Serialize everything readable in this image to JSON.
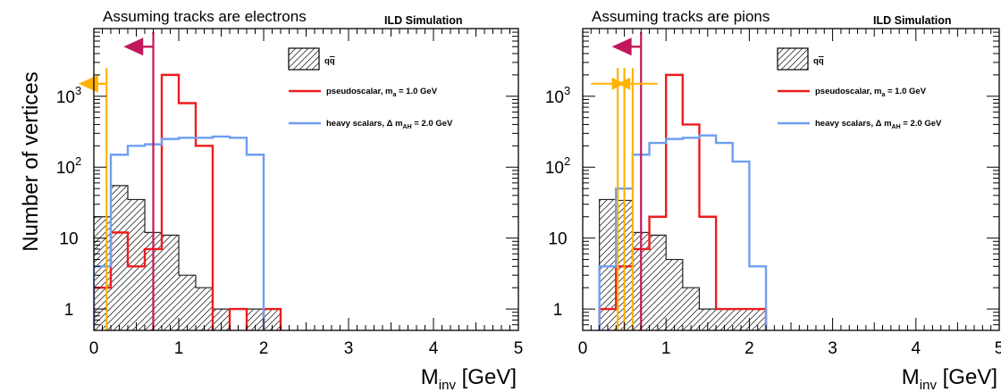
{
  "colors": {
    "qq": "#222222",
    "pseudoscalar": "#ee1c1c",
    "heavy": "#6f9ef0",
    "cut_main": "#c2185b",
    "cut_aux": "#ffb300"
  },
  "chart_data": [
    {
      "type": "histogram",
      "title": "Assuming tracks are electrons",
      "annotation": "ILD Simulation",
      "xlabel": "M",
      "xlabel_sub": "inv",
      "xlabel_unit": " [GeV]",
      "ylabel": "Number of vertices",
      "xlim": [
        0,
        5
      ],
      "ylim": [
        0.5,
        9000
      ],
      "yscale": "log",
      "xticks": [
        "0",
        "1",
        "2",
        "3",
        "4",
        "5"
      ],
      "yticks": [
        {
          "value": 1,
          "label": "1"
        },
        {
          "value": 10,
          "label": "10"
        },
        {
          "value": 100,
          "label": "10",
          "sup": "2"
        },
        {
          "value": 1000,
          "label": "10",
          "sup": "3"
        }
      ],
      "bin_width": 0.2,
      "series": [
        {
          "key": "qq",
          "values": [
            20,
            55,
            35,
            12,
            11,
            3,
            2,
            1,
            0,
            1,
            1,
            0,
            0,
            0,
            0,
            0,
            0,
            0,
            0,
            0,
            0,
            0,
            0,
            0,
            0
          ]
        },
        {
          "key": "pseudoscalar",
          "values": [
            2,
            12,
            4,
            7,
            2000,
            800,
            200,
            0,
            1,
            0,
            1,
            0,
            0,
            0,
            0,
            0,
            0,
            0,
            0,
            0,
            0,
            0,
            0,
            0,
            0
          ]
        },
        {
          "key": "heavy",
          "values": [
            4,
            150,
            200,
            210,
            250,
            260,
            260,
            270,
            260,
            150,
            0,
            0,
            0,
            0,
            0,
            0,
            0,
            0,
            0,
            0,
            0,
            0,
            0,
            0,
            0
          ]
        }
      ],
      "legend": [
        {
          "key": "qq",
          "label": "q",
          "label2": "q",
          "style": "hatch"
        },
        {
          "key": "pseudoscalar",
          "label": "pseudoscalar, m",
          "sub": "a",
          "label_tail": " = 1.0 GeV",
          "style": "line"
        },
        {
          "key": "heavy",
          "label": "heavy scalars, Δ m",
          "sub": "AH",
          "label_tail": " = 2.0 GeV",
          "style": "line"
        }
      ],
      "cuts": [
        {
          "x": 0.7,
          "color_key": "cut_main",
          "arrow_y": 5000,
          "arrow_to": 0.35
        },
        {
          "x": 0.15,
          "color_key": "cut_aux",
          "arrow_y": 1500,
          "arrow_to": -0.18
        }
      ],
      "double_arrows": []
    },
    {
      "type": "histogram",
      "title": "Assuming tracks are pions",
      "annotation": "ILD Simulation",
      "xlabel": "M",
      "xlabel_sub": "inv",
      "xlabel_unit": " [GeV]",
      "ylabel": "",
      "xlim": [
        0,
        5
      ],
      "ylim": [
        0.5,
        9000
      ],
      "yscale": "log",
      "xticks": [
        "0",
        "1",
        "2",
        "3",
        "4",
        "5"
      ],
      "yticks": [
        {
          "value": 1,
          "label": "1"
        },
        {
          "value": 10,
          "label": "10"
        },
        {
          "value": 100,
          "label": "10",
          "sup": "2"
        },
        {
          "value": 1000,
          "label": "10",
          "sup": "3"
        }
      ],
      "bin_width": 0.2,
      "series": [
        {
          "key": "qq",
          "values": [
            0,
            35,
            34,
            12,
            11,
            5,
            2,
            1,
            1,
            1,
            1,
            0,
            0,
            0,
            0,
            0,
            0,
            0,
            0,
            0,
            0,
            0,
            0,
            0,
            0
          ]
        },
        {
          "key": "pseudoscalar",
          "values": [
            0,
            1,
            4,
            7,
            20,
            2000,
            400,
            20,
            1,
            1,
            1,
            0,
            0,
            0,
            0,
            0,
            0,
            0,
            0,
            0,
            0,
            0,
            0,
            0,
            0
          ]
        },
        {
          "key": "heavy",
          "values": [
            0,
            4,
            50,
            150,
            220,
            250,
            260,
            280,
            220,
            120,
            4,
            0,
            0,
            0,
            0,
            0,
            0,
            0,
            0,
            0,
            0,
            0,
            0,
            0,
            0
          ]
        }
      ],
      "legend": [
        {
          "key": "qq",
          "label": "q",
          "label2": "q",
          "style": "hatch"
        },
        {
          "key": "pseudoscalar",
          "label": "pseudoscalar, m",
          "sub": "a",
          "label_tail": " = 1.0 GeV",
          "style": "line"
        },
        {
          "key": "heavy",
          "label": "heavy scalars, Δ m",
          "sub": "AH",
          "label_tail": " = 2.0 GeV",
          "style": "line"
        }
      ],
      "cuts": [
        {
          "x": 0.7,
          "color_key": "cut_main",
          "arrow_y": 5000,
          "arrow_to": 0.35
        },
        {
          "x": 0.42,
          "color_key": "cut_aux",
          "arrow_y": null,
          "arrow_to": null
        },
        {
          "x": 0.5,
          "color_key": "cut_aux",
          "arrow_y": null,
          "arrow_to": null
        },
        {
          "x": 0.6,
          "color_key": "cut_aux",
          "arrow_y": null,
          "arrow_to": null
        }
      ],
      "double_arrows": [
        {
          "color_key": "cut_aux",
          "y": 1500,
          "from": 0.42,
          "to": 0.1
        },
        {
          "color_key": "cut_aux",
          "y": 1500,
          "from": 0.5,
          "to": 0.9
        }
      ]
    }
  ]
}
